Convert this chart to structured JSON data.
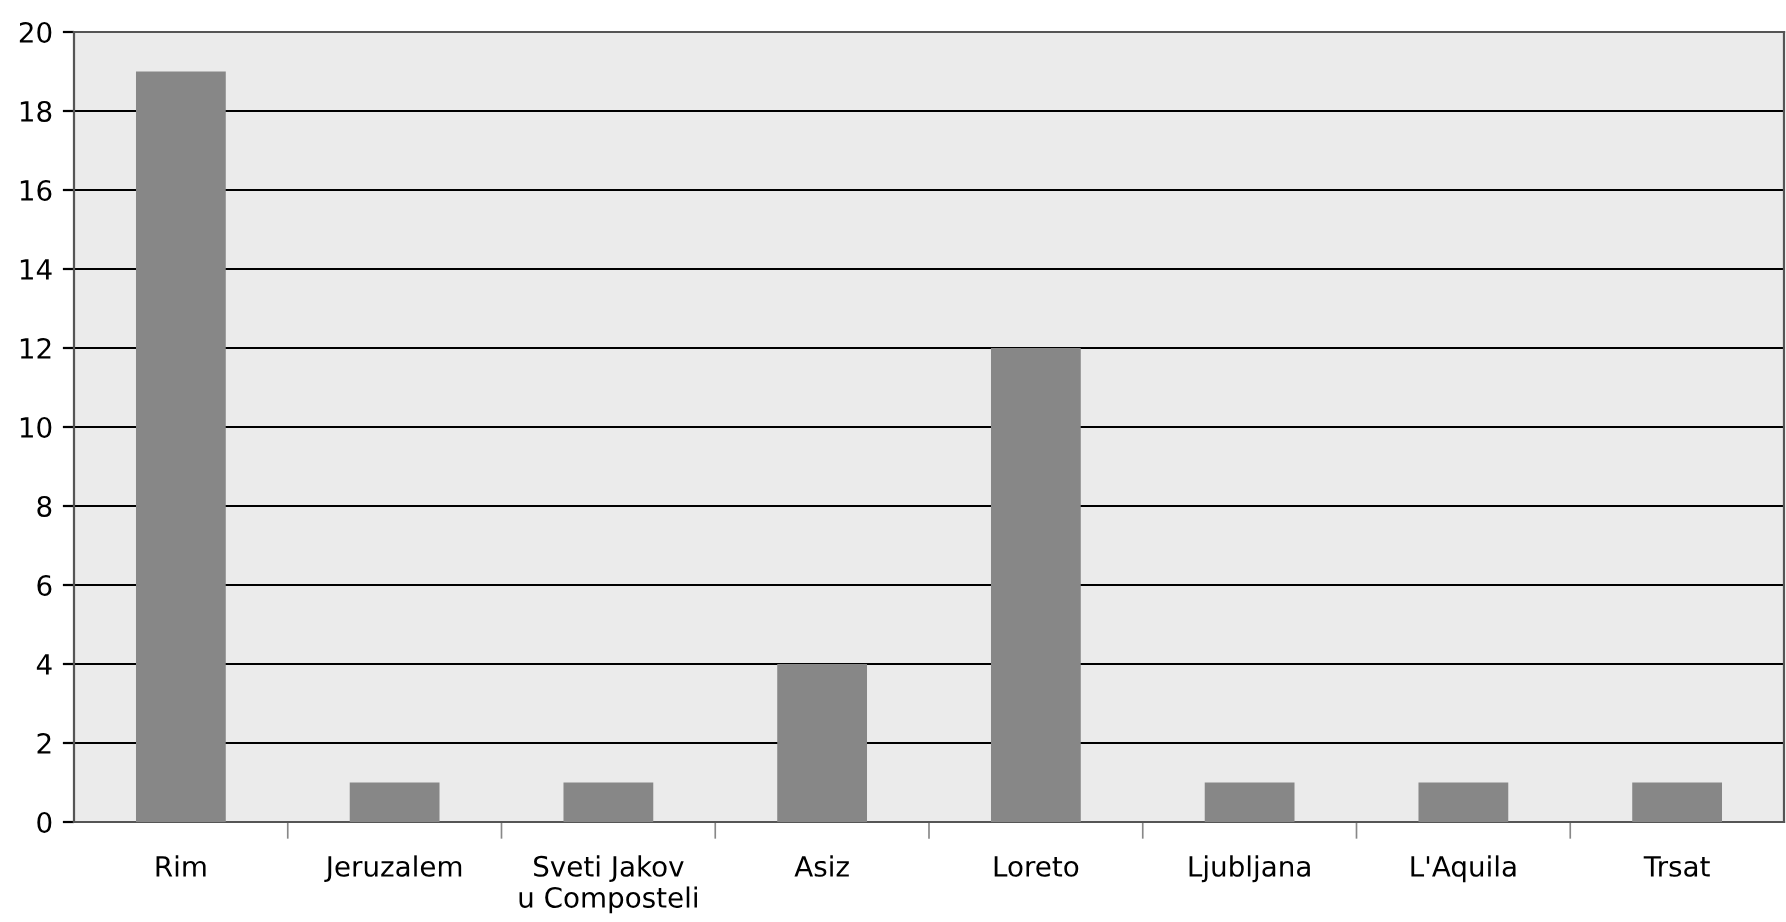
{
  "chart_data": {
    "type": "bar",
    "categories": [
      "Rim",
      "Jeruzalem",
      "Sveti Jakov\nu Composteli",
      "Asiz",
      "Loreto",
      "Ljubljana",
      "L'Aquila",
      "Trsat"
    ],
    "values": [
      19,
      1,
      1,
      4,
      12,
      1,
      1,
      1
    ],
    "color": "#878787",
    "ylim": [
      0,
      20
    ],
    "yticks": [
      0,
      2,
      4,
      6,
      8,
      10,
      12,
      14,
      16,
      18,
      20
    ],
    "grid": "y",
    "legend": false
  }
}
